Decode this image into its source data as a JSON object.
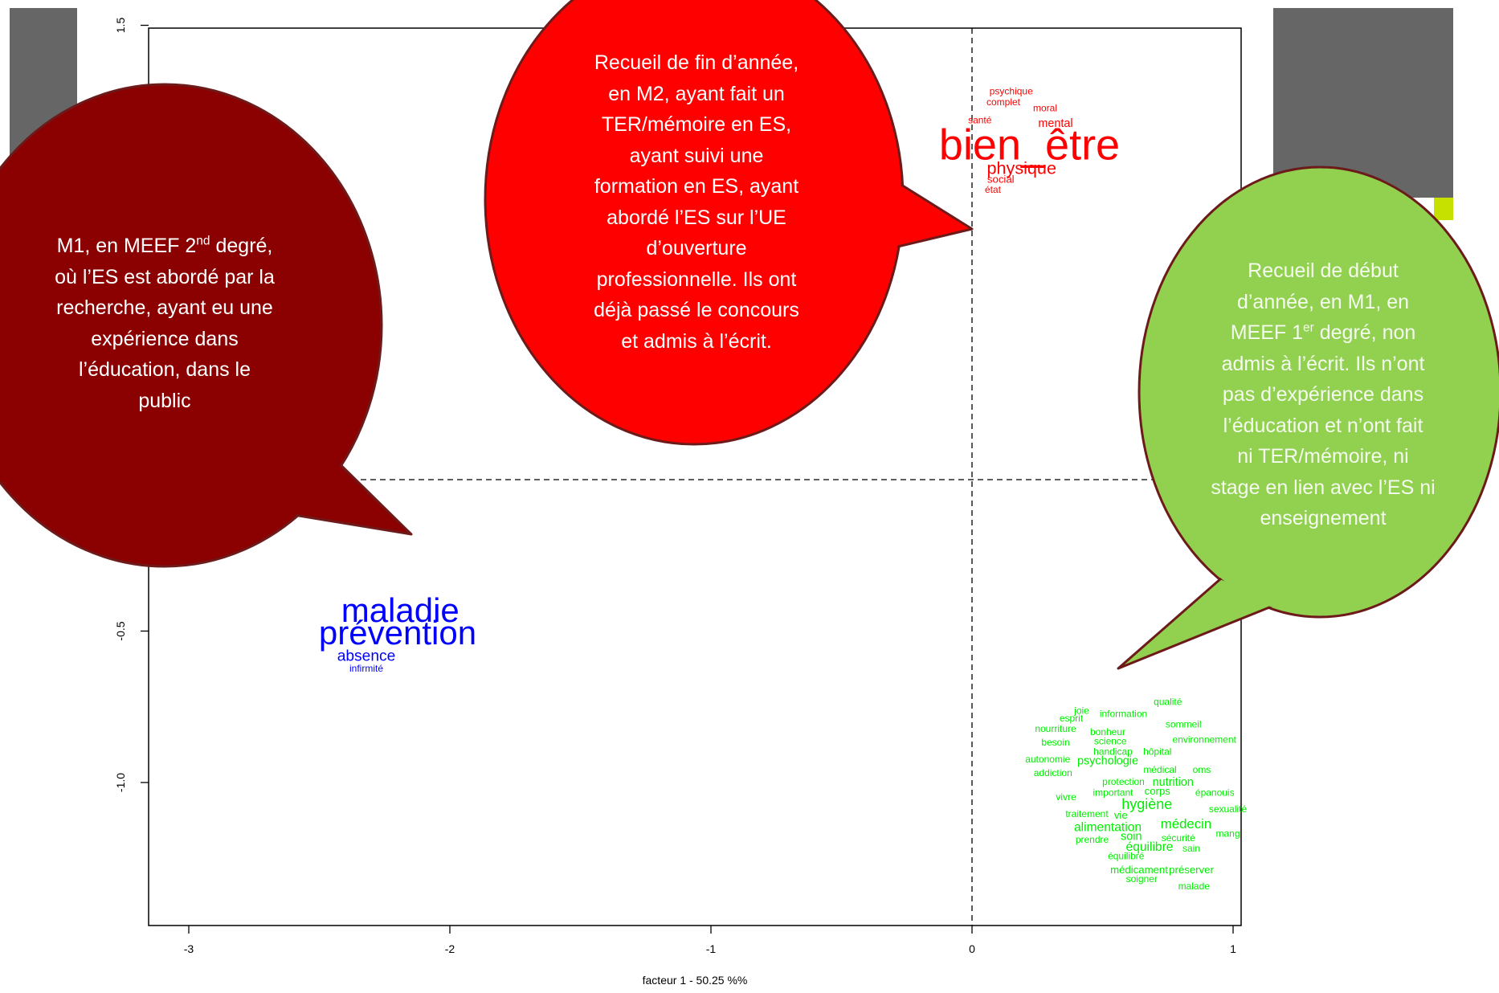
{
  "chart_data": {
    "type": "scatter",
    "title": "",
    "xlabel": "facteur  1  - 50.25 %%",
    "ylabel": "",
    "xlim": [
      -3.15,
      1.02
    ],
    "ylim": [
      -1.45,
      1.55
    ],
    "x_ticks": [
      -3,
      -2,
      -1,
      0,
      1
    ],
    "x_tick_labels": [
      "-3",
      "-2",
      "-1",
      "0",
      "1"
    ],
    "y_ticks": [
      1.5,
      -0.5,
      -1.0
    ],
    "y_tick_labels": [
      "1.5",
      "-0.5",
      "-1.0"
    ],
    "reference_lines": {
      "x": 0,
      "y": 0
    },
    "grid": false,
    "series": [
      {
        "color": "#ff0000",
        "words": [
          {
            "text": "psychique",
            "x": 0.15,
            "y": 1.28,
            "size": 1
          },
          {
            "text": "complet",
            "x": 0.12,
            "y": 1.245,
            "size": 1
          },
          {
            "text": "moral",
            "x": 0.28,
            "y": 1.225,
            "size": 1
          },
          {
            "text": "santé",
            "x": 0.03,
            "y": 1.185,
            "size": 1
          },
          {
            "text": "mental",
            "x": 0.32,
            "y": 1.175,
            "size": 1.2
          },
          {
            "text": "bien_être",
            "x": 0.22,
            "y": 1.095,
            "size": 4.5
          },
          {
            "text": "physique",
            "x": 0.19,
            "y": 1.025,
            "size": 1.8
          },
          {
            "text": "social",
            "x": 0.11,
            "y": 0.99,
            "size": 1.1
          },
          {
            "text": "état",
            "x": 0.08,
            "y": 0.955,
            "size": 1
          }
        ]
      },
      {
        "color": "#0000ff",
        "words": [
          {
            "text": "maladie",
            "x": -2.19,
            "y": -0.44,
            "size": 3.5
          },
          {
            "text": "prévention",
            "x": -2.2,
            "y": -0.515,
            "size": 3.5
          },
          {
            "text": "absence",
            "x": -2.32,
            "y": -0.585,
            "size": 1.6
          },
          {
            "text": "infirmité",
            "x": -2.32,
            "y": -0.625,
            "size": 1
          }
        ]
      },
      {
        "color": "#00ee00",
        "words": [
          {
            "text": "qualité",
            "x": 0.75,
            "y": -0.735,
            "size": 1
          },
          {
            "text": "joie",
            "x": 0.42,
            "y": -0.765,
            "size": 1
          },
          {
            "text": "information",
            "x": 0.58,
            "y": -0.775,
            "size": 1
          },
          {
            "text": "esprit",
            "x": 0.38,
            "y": -0.79,
            "size": 1
          },
          {
            "text": "sommeil",
            "x": 0.81,
            "y": -0.81,
            "size": 1
          },
          {
            "text": "nourriture",
            "x": 0.32,
            "y": -0.825,
            "size": 1
          },
          {
            "text": "bonheur",
            "x": 0.52,
            "y": -0.835,
            "size": 1
          },
          {
            "text": "besoin",
            "x": 0.32,
            "y": -0.87,
            "size": 1
          },
          {
            "text": "science",
            "x": 0.53,
            "y": -0.865,
            "size": 1
          },
          {
            "text": "environnement",
            "x": 0.89,
            "y": -0.86,
            "size": 1
          },
          {
            "text": "handicap",
            "x": 0.54,
            "y": -0.9,
            "size": 1
          },
          {
            "text": "hôpital",
            "x": 0.71,
            "y": -0.9,
            "size": 1
          },
          {
            "text": "autonomie",
            "x": 0.29,
            "y": -0.925,
            "size": 1
          },
          {
            "text": "psychologie",
            "x": 0.52,
            "y": -0.93,
            "size": 1.2
          },
          {
            "text": "médical",
            "x": 0.72,
            "y": -0.96,
            "size": 1
          },
          {
            "text": "oms",
            "x": 0.88,
            "y": -0.96,
            "size": 1
          },
          {
            "text": "addiction",
            "x": 0.31,
            "y": -0.97,
            "size": 1
          },
          {
            "text": "protection",
            "x": 0.58,
            "y": -1.0,
            "size": 1
          },
          {
            "text": "nutrition",
            "x": 0.77,
            "y": -1.0,
            "size": 1.2
          },
          {
            "text": "important",
            "x": 0.54,
            "y": -1.035,
            "size": 1
          },
          {
            "text": "corps",
            "x": 0.71,
            "y": -1.03,
            "size": 1.1
          },
          {
            "text": "épanouis",
            "x": 0.93,
            "y": -1.035,
            "size": 1
          },
          {
            "text": "vivre",
            "x": 0.36,
            "y": -1.05,
            "size": 1
          },
          {
            "text": "hygiène",
            "x": 0.67,
            "y": -1.075,
            "size": 1.5
          },
          {
            "text": "sexualité",
            "x": 0.98,
            "y": -1.09,
            "size": 1
          },
          {
            "text": "traitement",
            "x": 0.44,
            "y": -1.105,
            "size": 1
          },
          {
            "text": "vie",
            "x": 0.57,
            "y": -1.11,
            "size": 1.1
          },
          {
            "text": "alimentation",
            "x": 0.52,
            "y": -1.15,
            "size": 1.3
          },
          {
            "text": "médecin",
            "x": 0.82,
            "y": -1.14,
            "size": 1.4
          },
          {
            "text": "mang",
            "x": 0.98,
            "y": -1.17,
            "size": 1
          },
          {
            "text": "prendre",
            "x": 0.46,
            "y": -1.19,
            "size": 1
          },
          {
            "text": "soin",
            "x": 0.61,
            "y": -1.18,
            "size": 1.2
          },
          {
            "text": "sécurité",
            "x": 0.79,
            "y": -1.185,
            "size": 1
          },
          {
            "text": "équilibre",
            "x": 0.68,
            "y": -1.215,
            "size": 1.3
          },
          {
            "text": "sain",
            "x": 0.84,
            "y": -1.22,
            "size": 1
          },
          {
            "text": "équilibré",
            "x": 0.59,
            "y": -1.245,
            "size": 1
          },
          {
            "text": "médicament",
            "x": 0.64,
            "y": -1.29,
            "size": 1.1
          },
          {
            "text": "préserver",
            "x": 0.84,
            "y": -1.29,
            "size": 1.1
          },
          {
            "text": "soigner",
            "x": 0.65,
            "y": -1.32,
            "size": 1
          },
          {
            "text": "malade",
            "x": 0.85,
            "y": -1.345,
            "size": 1
          }
        ]
      }
    ]
  },
  "callouts": {
    "dark_red": {
      "color": "#8b0000",
      "lines": [
        "M1, en MEEF 2|nd| degré,",
        "où l’ES est abordé par la",
        "recherche, ayant eu une",
        "expérience dans",
        "l’éducation, dans le",
        "public"
      ]
    },
    "red": {
      "color": "#ff0000",
      "lines": [
        "Recueil de fin d’année,",
        "en M2, ayant fait un",
        "TER/mémoire en ES,",
        "ayant suivi une",
        "formation en ES, ayant",
        "abordé l’ES sur l’UE",
        "d’ouverture",
        "professionnelle. Ils ont",
        "déjà passé le concours",
        "et admis à l’écrit."
      ]
    },
    "green": {
      "color": "#92d050",
      "lines": [
        "Recueil de début",
        "d’année, en M1, en",
        "MEEF 1|er| degré, non",
        "admis à l’écrit. Ils n’ont",
        "pas d’expérience dans",
        "l’éducation et n’ont fait",
        "ni TER/mémoire, ni",
        "stage en lien avec l’ES ni",
        "enseignement"
      ]
    }
  },
  "colors": {
    "slide_gray": "#666666",
    "slide_lime": "#c6e000",
    "callout_border": "#6d1a1a"
  }
}
